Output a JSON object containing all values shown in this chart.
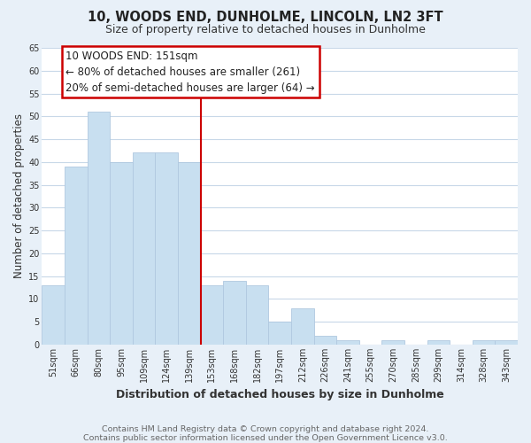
{
  "title": "10, WOODS END, DUNHOLME, LINCOLN, LN2 3FT",
  "subtitle": "Size of property relative to detached houses in Dunholme",
  "xlabel": "Distribution of detached houses by size in Dunholme",
  "ylabel": "Number of detached properties",
  "bar_labels": [
    "51sqm",
    "66sqm",
    "80sqm",
    "95sqm",
    "109sqm",
    "124sqm",
    "139sqm",
    "153sqm",
    "168sqm",
    "182sqm",
    "197sqm",
    "212sqm",
    "226sqm",
    "241sqm",
    "255sqm",
    "270sqm",
    "285sqm",
    "299sqm",
    "314sqm",
    "328sqm",
    "343sqm"
  ],
  "bar_values": [
    13,
    39,
    51,
    40,
    42,
    42,
    40,
    13,
    14,
    13,
    5,
    8,
    2,
    1,
    0,
    1,
    0,
    1,
    0,
    1,
    1
  ],
  "bar_color": "#c8dff0",
  "bar_edge_color": "#b0c8e0",
  "highlight_line_color": "#cc0000",
  "annotation_text": "10 WOODS END: 151sqm\n← 80% of detached houses are smaller (261)\n20% of semi-detached houses are larger (64) →",
  "annotation_box_color": "#ffffff",
  "annotation_box_edge_color": "#cc0000",
  "ylim": [
    0,
    65
  ],
  "yticks": [
    0,
    5,
    10,
    15,
    20,
    25,
    30,
    35,
    40,
    45,
    50,
    55,
    60,
    65
  ],
  "footer_line1": "Contains HM Land Registry data © Crown copyright and database right 2024.",
  "footer_line2": "Contains public sector information licensed under the Open Government Licence v3.0.",
  "fig_bg_color": "#e8f0f8",
  "plot_bg_color": "#ffffff",
  "grid_color": "#c8d8e8",
  "title_fontsize": 10.5,
  "subtitle_fontsize": 9,
  "tick_fontsize": 7,
  "ylabel_fontsize": 8.5,
  "xlabel_fontsize": 9,
  "footer_fontsize": 6.8,
  "annotation_fontsize": 8.5
}
